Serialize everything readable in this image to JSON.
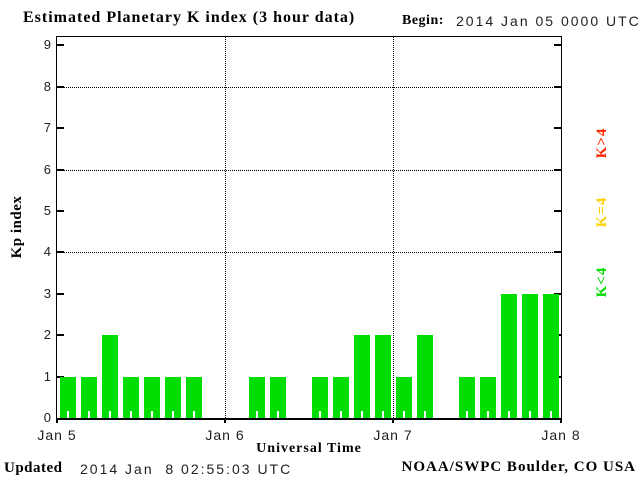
{
  "page": {
    "title": "Estimated Planetary K index (3 hour data)",
    "begin_label": "Begin:",
    "begin_value": "2014 Jan 05 0000 UTC",
    "updated_label": "Updated",
    "updated_value": "2014 Jan  8 02:55:03 UTC",
    "attribution": "NOAA/SWPC Boulder, CO USA"
  },
  "chart_data": {
    "type": "bar",
    "title": "Estimated Planetary K index (3 hour data)",
    "xlabel": "Universal Time",
    "ylabel": "Kp index",
    "begin": "2014 Jan 05 0000 UTC",
    "interval_hours": 3,
    "ylim": [
      0,
      9
    ],
    "y_ticks": [
      0,
      1,
      2,
      3,
      4,
      5,
      6,
      7,
      8,
      9
    ],
    "h_gridlines": [
      4,
      6,
      8
    ],
    "x_tick_labels": [
      "Jan 5",
      "Jan 6",
      "Jan 7",
      "Jan 8"
    ],
    "days": [
      {
        "date": "Jan 5",
        "values": [
          1,
          1,
          2,
          1,
          1,
          1,
          1,
          0
        ]
      },
      {
        "date": "Jan 6",
        "values": [
          0,
          1,
          1,
          0,
          1,
          1,
          2,
          2
        ]
      },
      {
        "date": "Jan 7",
        "values": [
          1,
          2,
          0,
          1,
          1,
          3,
          3,
          3
        ]
      }
    ],
    "legend": [
      {
        "label": "K>4",
        "color": "#ff2800"
      },
      {
        "label": "K=4",
        "color": "#ffd000"
      },
      {
        "label": "K<4",
        "color": "#00dd00"
      }
    ],
    "grid": "dotted",
    "legend_position": "right-rotated"
  }
}
